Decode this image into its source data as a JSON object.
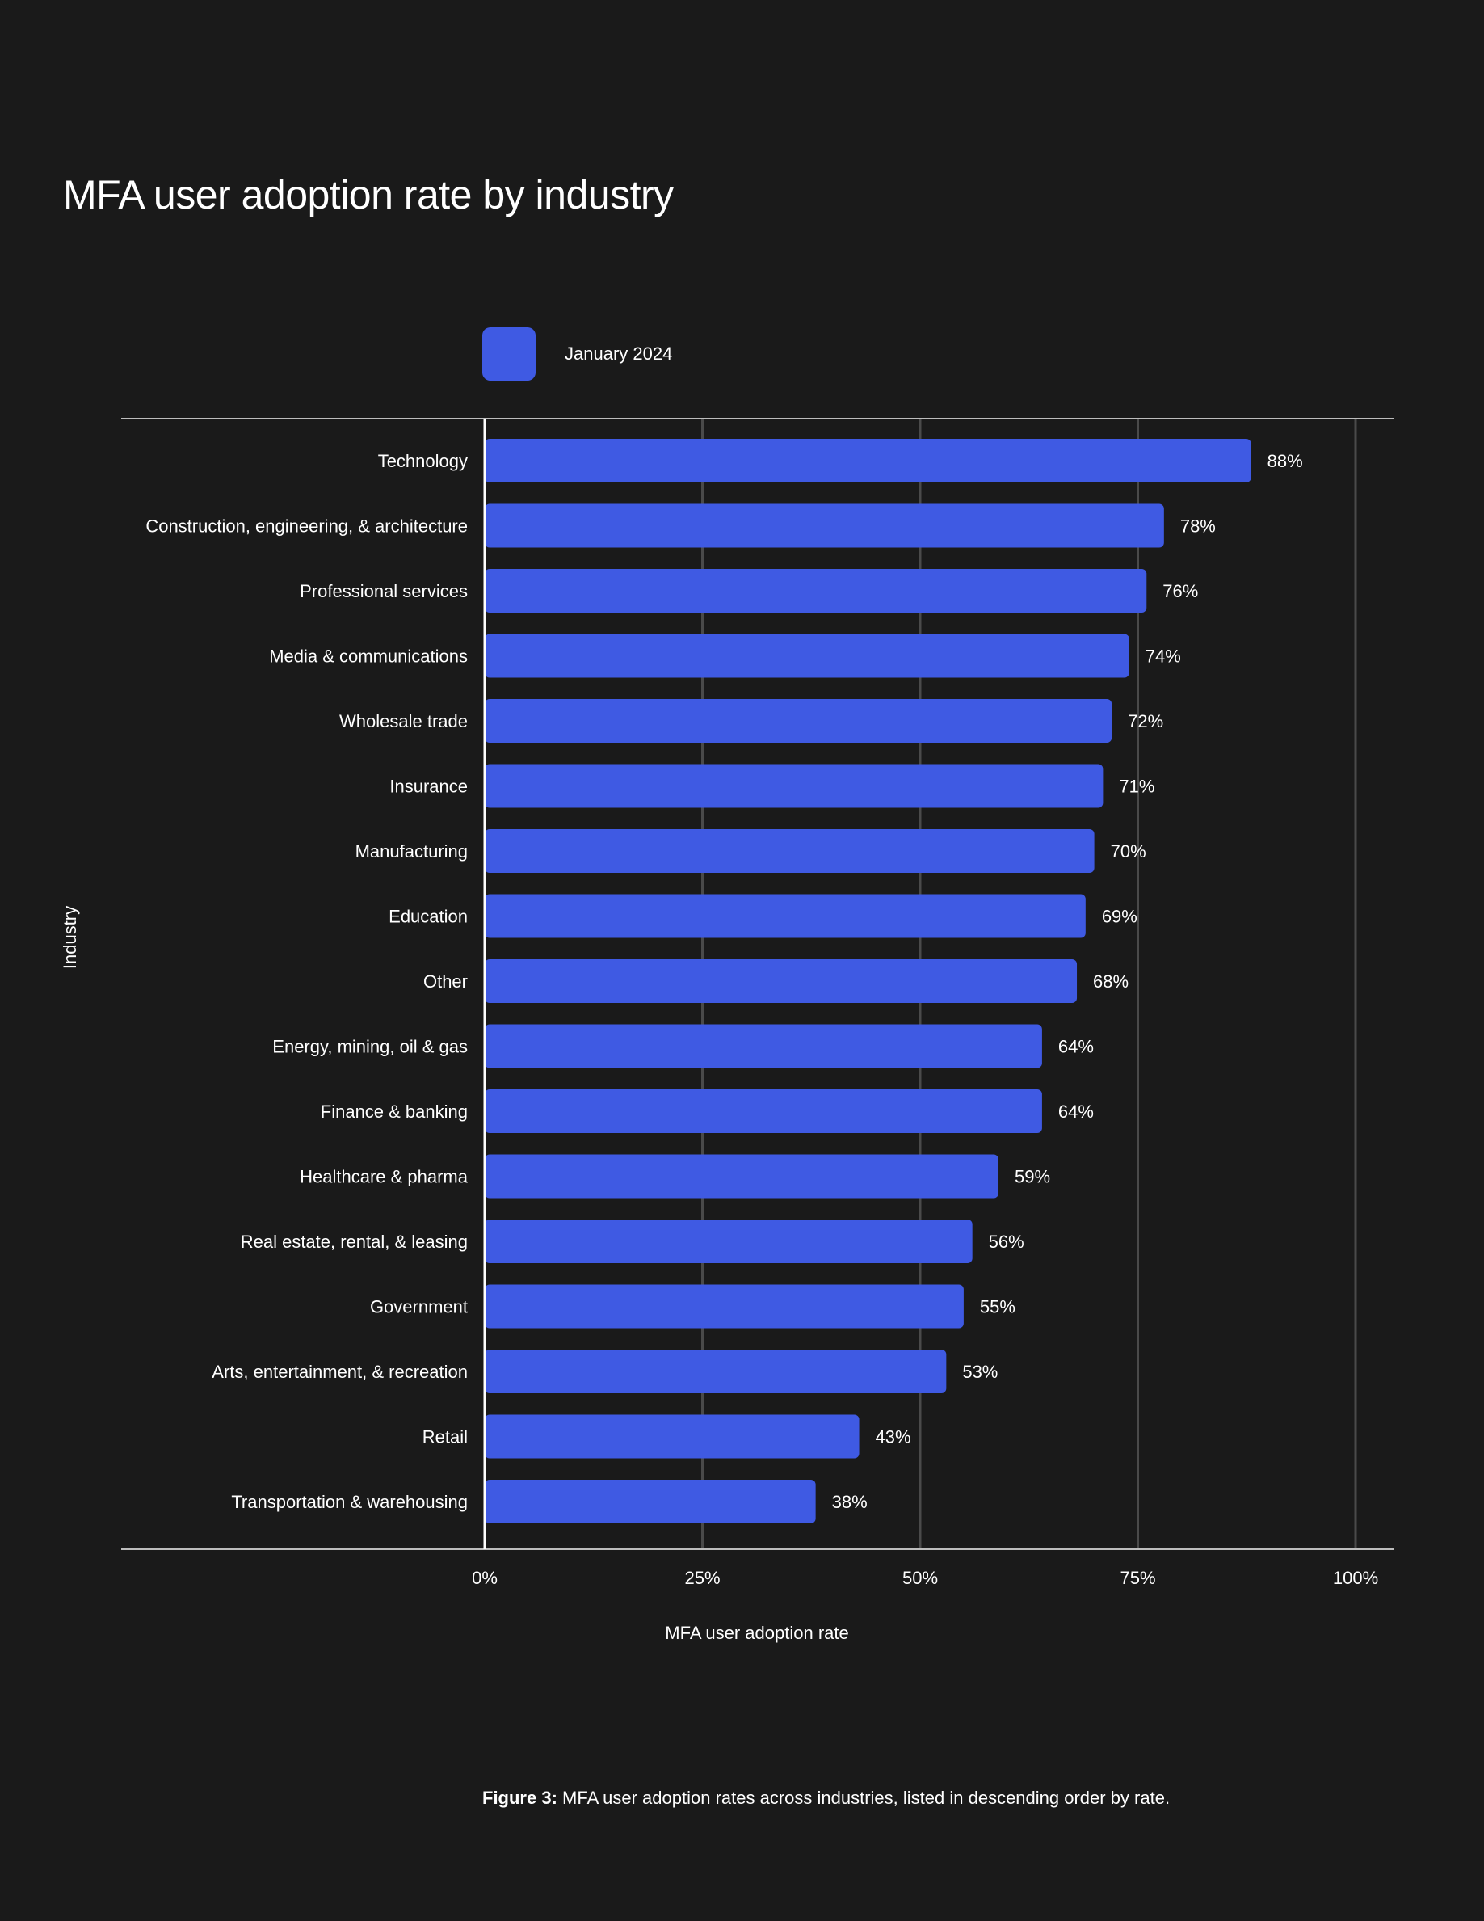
{
  "chart_data": {
    "type": "bar",
    "orientation": "horizontal",
    "title": "MFA user adoption rate by industry",
    "xlabel": "MFA user adoption rate",
    "ylabel": "Industry",
    "xlim": [
      0,
      100
    ],
    "x_ticks": [
      "0%",
      "25%",
      "50%",
      "75%",
      "100%"
    ],
    "grid": "vertical",
    "legend_position": "top",
    "series": [
      {
        "name": "January 2024",
        "color": "#3f5ae3"
      }
    ],
    "categories": [
      "Technology",
      "Construction, engineering, & architecture",
      "Professional services",
      "Media & communications",
      "Wholesale trade",
      "Insurance",
      "Manufacturing",
      "Education",
      "Other",
      "Energy, mining, oil & gas",
      "Finance & banking",
      "Healthcare & pharma",
      "Real estate, rental, & leasing",
      "Government",
      "Arts, entertainment, & recreation",
      "Retail",
      "Transportation & warehousing"
    ],
    "values": [
      88,
      78,
      76,
      74,
      72,
      71,
      70,
      69,
      68,
      64,
      64,
      59,
      56,
      55,
      53,
      43,
      38
    ],
    "value_labels": [
      "88%",
      "78%",
      "76%",
      "74%",
      "72%",
      "71%",
      "70%",
      "69%",
      "68%",
      "64%",
      "64%",
      "59%",
      "56%",
      "55%",
      "53%",
      "43%",
      "38%"
    ]
  },
  "caption": {
    "bold": "Figure 3:",
    "text": " MFA user adoption rates across industries, listed in descending order by rate."
  },
  "colors": {
    "background": "#1a1a1a",
    "bar": "#3f5ae3",
    "grid": "#4a4a4a",
    "axis": "#bdbdbd"
  }
}
